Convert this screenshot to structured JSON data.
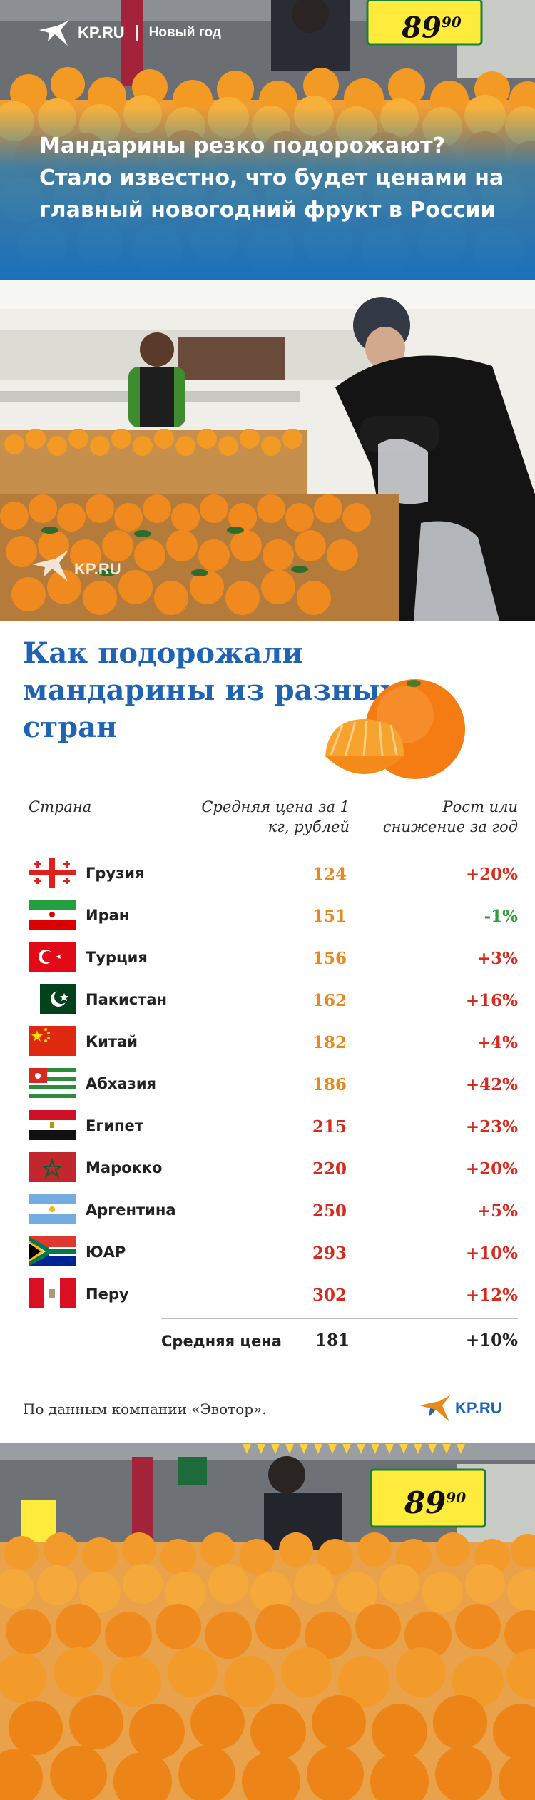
{
  "header": {
    "brand": "KP.RU",
    "section": "Новый год",
    "title": "Мандарины резко подорожают? Стало известно, что будет ценами на главный новогодний фрукт в России",
    "price_tag": "89",
    "price_tag_cents": "90"
  },
  "photo1": {
    "watermark": "KP.RU"
  },
  "infographic": {
    "title": "Как подорожали мандарины из разных стран",
    "columns": {
      "country": "Страна",
      "price": "Средняя цена за 1 кг, рублей",
      "change": "Рост или снижение за год"
    },
    "rows": [
      {
        "country": "Грузия",
        "price": "124",
        "change": "+20%"
      },
      {
        "country": "Иран",
        "price": "151",
        "change": "-1%"
      },
      {
        "country": "Турция",
        "price": "156",
        "change": "+3%"
      },
      {
        "country": "Пакистан",
        "price": "162",
        "change": "+16%"
      },
      {
        "country": "Китай",
        "price": "182",
        "change": "+4%"
      },
      {
        "country": "Абхазия",
        "price": "186",
        "change": "+42%"
      },
      {
        "country": "Египет",
        "price": "215",
        "change": "+23%"
      },
      {
        "country": "Марокко",
        "price": "220",
        "change": "+20%"
      },
      {
        "country": "Аргентина",
        "price": "250",
        "change": "+5%"
      },
      {
        "country": "ЮАР",
        "price": "293",
        "change": "+10%"
      },
      {
        "country": "Перу",
        "price": "302",
        "change": "+12%"
      }
    ],
    "average": {
      "label": "Средняя цена",
      "price": "181",
      "change": "+10%"
    },
    "source": "По данным компании «Эвотор».",
    "footer_brand": "KP.RU"
  },
  "colors": {
    "title_blue": "#1f63b5",
    "price_orange": "#e8891d",
    "price_red": "#d62a1e",
    "change_red": "#d62a1e",
    "change_green": "#2e9e3a"
  }
}
